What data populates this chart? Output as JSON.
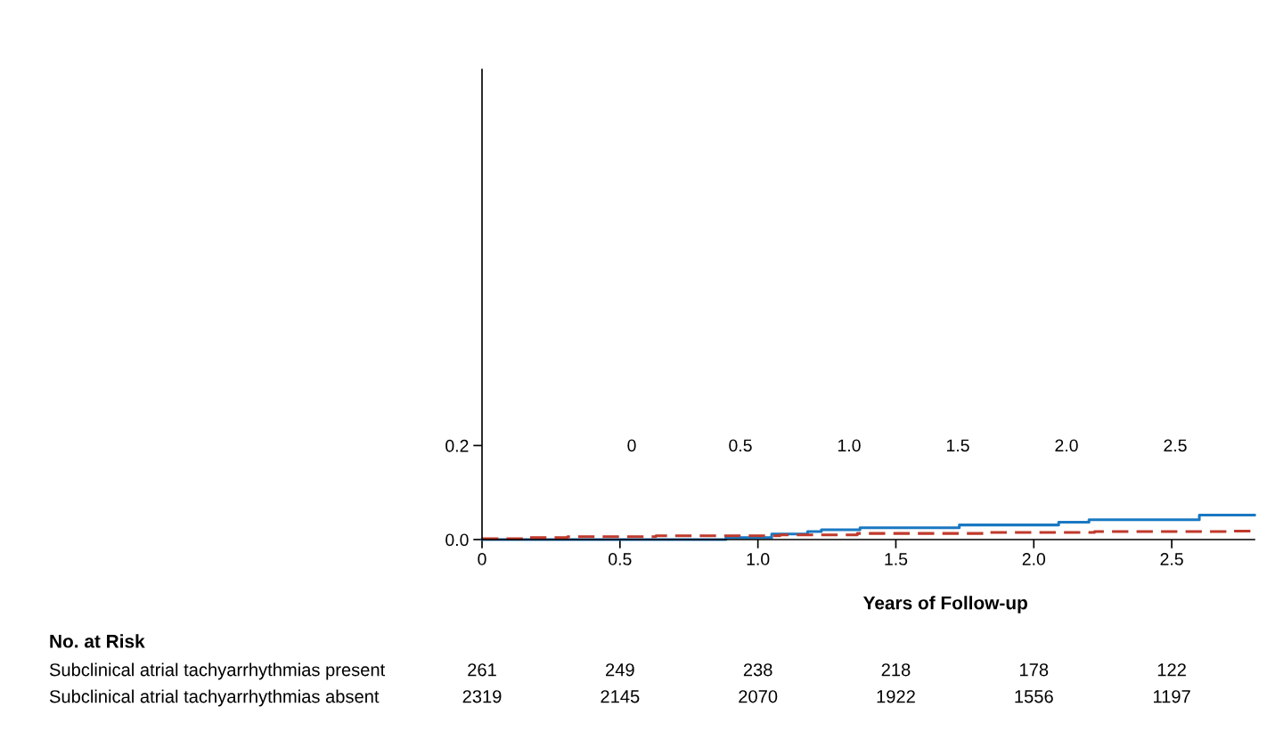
{
  "chart_data": {
    "type": "step",
    "xlabel": "Years of Follow-up",
    "xlim": [
      0,
      2.8
    ],
    "ylim": [
      0,
      1.0
    ],
    "xticks": [
      0,
      {
        "value": 0.5,
        "label": "0.5"
      },
      {
        "value": 1.0,
        "label": "1.0"
      },
      {
        "value": 1.5,
        "label": "1.5"
      },
      {
        "value": 2.0,
        "label": "2.0"
      },
      {
        "value": 2.5,
        "label": "2.5"
      }
    ],
    "yticks": [
      {
        "value": 0,
        "label": "0.0"
      },
      {
        "value": 0.2,
        "label": "0.2"
      }
    ],
    "grid": false,
    "series": [
      {
        "color": "#1a78c2",
        "line_style": "solid",
        "x": [
          0,
          0.884,
          1.05,
          1.18,
          1.23,
          1.37,
          1.73,
          2.09,
          2.2,
          2.6,
          2.8
        ],
        "values": [
          0,
          0.004,
          0.012,
          0.017,
          0.021,
          0.025,
          0.031,
          0.037,
          0.042,
          0.052,
          0.052
        ]
      },
      {
        "color": "#c0392b",
        "line_style": "dashed",
        "x": [
          0,
          0.15,
          0.31,
          0.63,
          1.08,
          1.36,
          1.84,
          2.22,
          2.72,
          2.8
        ],
        "values": [
          0.002,
          0.004,
          0.006,
          0.008,
          0.01,
          0.013,
          0.015,
          0.017,
          0.018,
          0.018
        ]
      }
    ],
    "annotations": [
      "0",
      "0.5",
      "1.0",
      "1.5",
      "2.0",
      "2.5",
      "No. at Risk",
      "Subclinical atrial tachyarrhythmias present",
      "261",
      "249",
      "238",
      "218",
      "178",
      "122",
      "Subclinical atrial tachyarrhythmias absent",
      "2319",
      "2145",
      "2070",
      "1922",
      "1556",
      "1197"
    ]
  }
}
